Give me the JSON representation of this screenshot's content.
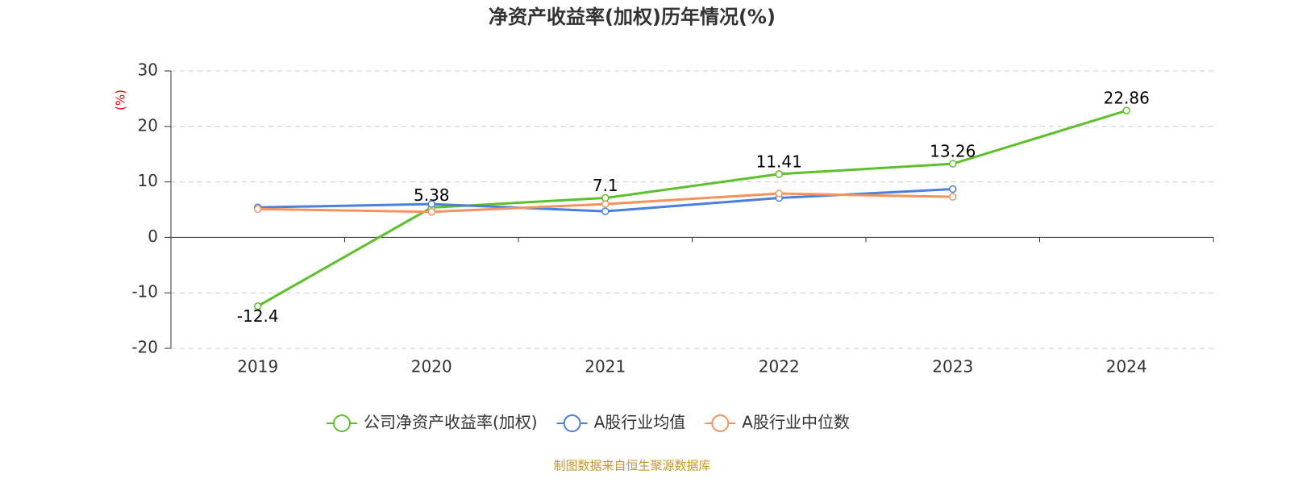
{
  "chart_data": {
    "type": "line",
    "title": "净资产收益率(加权)历年情况(%)",
    "y_label": "(%)",
    "source": "制图数据来自恒生聚源数据库",
    "categories": [
      "2019",
      "2020",
      "2021",
      "2022",
      "2023",
      "2024"
    ],
    "series": [
      {
        "name": "公司净资产收益率(加权)",
        "color": "#5cc02a",
        "values": [
          -12.4,
          5.38,
          7.1,
          11.41,
          13.26,
          22.86
        ],
        "data_labels": true
      },
      {
        "name": "A股行业均值",
        "color": "#4a7fdb",
        "values": [
          5.4,
          6.0,
          4.7,
          7.1,
          8.7,
          null
        ]
      },
      {
        "name": "A股行业中位数",
        "color": "#f5935f",
        "values": [
          5.1,
          4.6,
          6.0,
          7.9,
          7.3,
          null
        ]
      }
    ],
    "ylim": [
      -20,
      30
    ],
    "yticks": [
      -20,
      -10,
      0,
      10,
      20,
      30
    ],
    "grid": true
  }
}
